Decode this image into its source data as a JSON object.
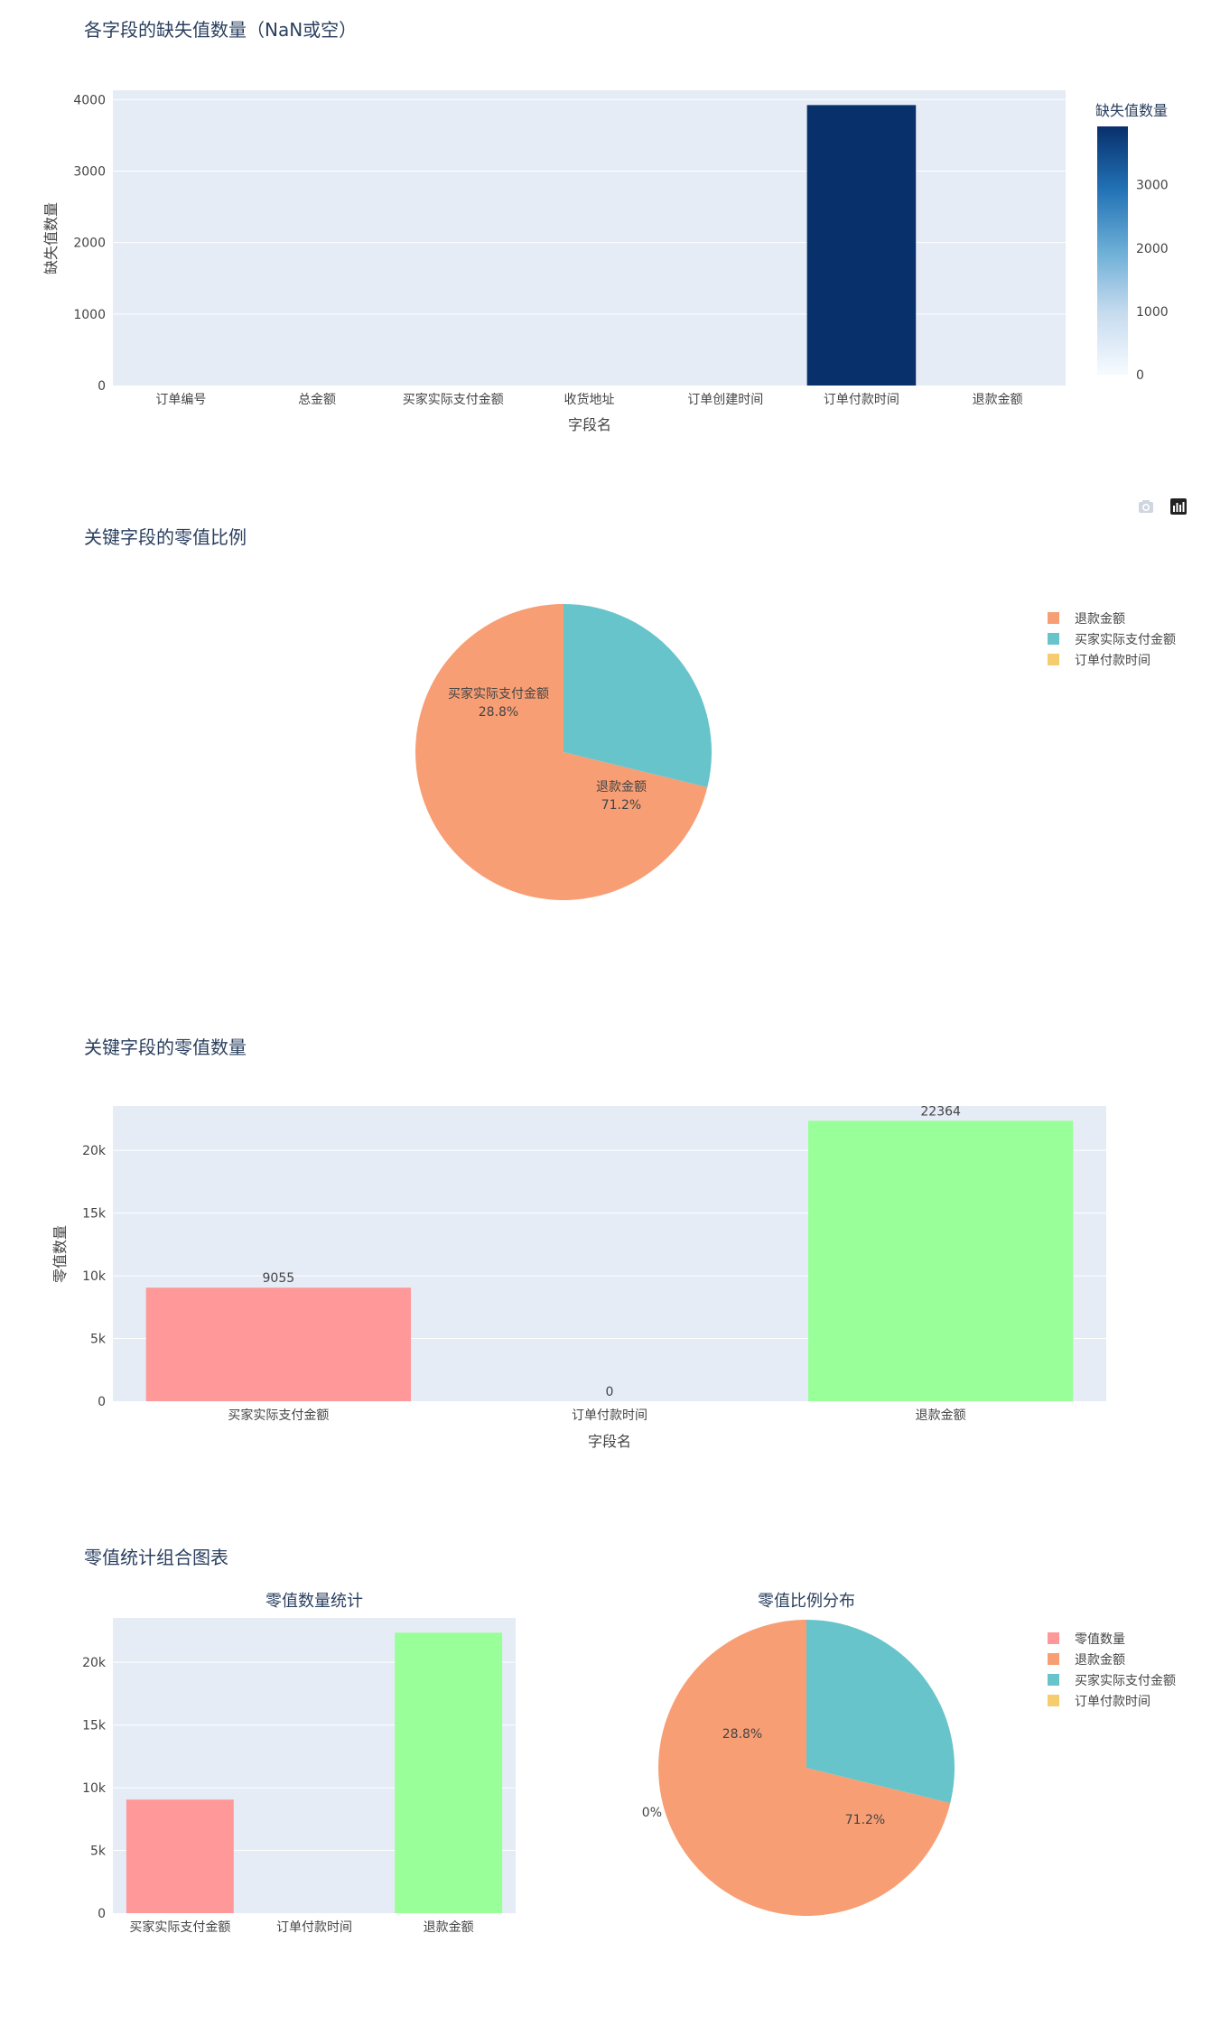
{
  "figures": {
    "missing": {
      "title": "各字段的缺失值数量（NaN或空）",
      "chart_data": {
        "type": "bar",
        "categories": [
          "订单编号",
          "总金额",
          "买家实际支付金额",
          "收货地址",
          "订单创建时间",
          "订单付款时间",
          "退款金额"
        ],
        "values": [
          0,
          0,
          0,
          0,
          0,
          3923,
          0
        ],
        "xlabel": "字段名",
        "ylabel": "缺失值数量",
        "ylim": [
          0,
          4130
        ],
        "yticks": [
          0,
          1000,
          2000,
          3000,
          4000
        ],
        "colorscale": "Blues",
        "colorbar": {
          "title": "缺失值数量",
          "ticks": [
            0,
            1000,
            2000,
            3000
          ],
          "range": [
            0,
            3923
          ]
        },
        "grid": true
      }
    },
    "zero_pie": {
      "title": "关键字段的零值比例",
      "chart_data": {
        "type": "pie",
        "labels": [
          "退款金额",
          "买家实际支付金额",
          "订单付款时间"
        ],
        "values": [
          22364,
          9055,
          0
        ],
        "percent_labels": [
          "71.2%",
          "28.8%",
          "0%"
        ],
        "colors": [
          "#F89E74",
          "#67C4CB",
          "#F5CD6E"
        ],
        "legend": "top-right"
      }
    },
    "zero_bar": {
      "title": "关键字段的零值数量",
      "chart_data": {
        "type": "bar",
        "categories": [
          "买家实际支付金额",
          "订单付款时间",
          "退款金额"
        ],
        "values": [
          9055,
          0,
          22364
        ],
        "value_labels": [
          "9055",
          "0",
          "22364"
        ],
        "colors": [
          "#FF9999",
          "#66B3FF",
          "#99FF99"
        ],
        "xlabel": "字段名",
        "ylabel": "零值数量",
        "ylim": [
          0,
          23540
        ],
        "yticks": [
          0,
          5000,
          10000,
          15000,
          20000
        ],
        "ytick_labels": [
          "0",
          "5k",
          "10k",
          "15k",
          "20k"
        ],
        "grid": true
      }
    },
    "combo": {
      "title": "零值统计组合图表",
      "bar": {
        "subtitle": "零值数量统计",
        "chart_data": {
          "type": "bar",
          "categories": [
            "买家实际支付金额",
            "订单付款时间",
            "退款金额"
          ],
          "values": [
            9055,
            0,
            22364
          ],
          "colors": [
            "#FF9999",
            "#66B3FF",
            "#99FF99"
          ],
          "ylim": [
            0,
            23540
          ],
          "yticks": [
            0,
            5000,
            10000,
            15000,
            20000
          ],
          "ytick_labels": [
            "0",
            "5k",
            "10k",
            "15k",
            "20k"
          ],
          "grid": true
        }
      },
      "pie": {
        "subtitle": "零值比例分布",
        "chart_data": {
          "type": "pie",
          "labels": [
            "退款金额",
            "买家实际支付金额",
            "订单付款时间"
          ],
          "values": [
            22364,
            9055,
            0
          ],
          "percent_labels": [
            "71.2%",
            "28.8%",
            "0%"
          ],
          "colors": [
            "#F89E74",
            "#67C4CB",
            "#F5CD6E"
          ]
        }
      },
      "legend": {
        "items": [
          "零值数量",
          "退款金额",
          "买家实际支付金额",
          "订单付款时间"
        ],
        "colors": [
          "#FF9999",
          "#F89E74",
          "#67C4CB",
          "#F5CD6E"
        ],
        "placement": "top-right"
      }
    }
  },
  "toolbar": {
    "icons": [
      "camera-icon",
      "plotly-logo-icon"
    ]
  },
  "colors": {
    "plot_bg": "#E5ECF6",
    "grid": "#FFFFFF",
    "text": "#444444",
    "title": "#2A3F5F"
  }
}
